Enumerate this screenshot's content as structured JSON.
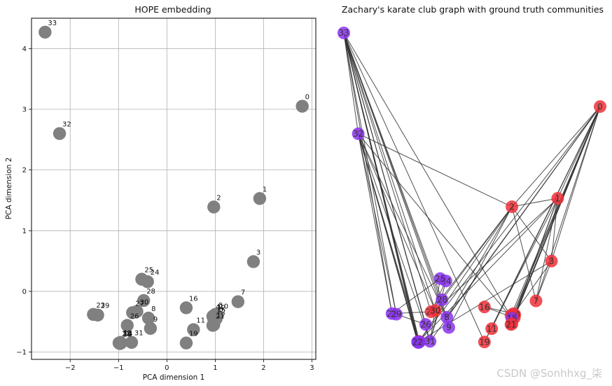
{
  "chart_data": [
    {
      "type": "scatter",
      "title": "HOPE embedding",
      "xlabel": "PCA dimension 1",
      "ylabel": "PCA dimension 2",
      "xlim": [
        -2.8,
        3.08
      ],
      "ylim": [
        -1.12,
        4.5
      ],
      "xticks": [
        -2,
        -1,
        0,
        1,
        2,
        3
      ],
      "yticks": [
        -1,
        0,
        1,
        2,
        3,
        4
      ],
      "grid": true,
      "point_color": "#808080",
      "points": [
        {
          "label": "33",
          "x": -2.52,
          "y": 4.27
        },
        {
          "label": "32",
          "x": -2.22,
          "y": 2.6
        },
        {
          "label": "0",
          "x": 2.8,
          "y": 3.05
        },
        {
          "label": "2",
          "x": 0.97,
          "y": 1.39
        },
        {
          "label": "1",
          "x": 1.92,
          "y": 1.53
        },
        {
          "label": "3",
          "x": 1.79,
          "y": 0.49
        },
        {
          "label": "7",
          "x": 1.47,
          "y": -0.17
        },
        {
          "label": "25",
          "x": -0.52,
          "y": 0.2
        },
        {
          "label": "24",
          "x": -0.4,
          "y": 0.16
        },
        {
          "label": "28",
          "x": -0.48,
          "y": -0.15
        },
        {
          "label": "23",
          "x": -1.52,
          "y": -0.38
        },
        {
          "label": "29",
          "x": -1.43,
          "y": -0.39
        },
        {
          "label": "27",
          "x": -0.71,
          "y": -0.35
        },
        {
          "label": "30",
          "x": -0.62,
          "y": -0.33
        },
        {
          "label": "8",
          "x": -0.38,
          "y": -0.44
        },
        {
          "label": "26",
          "x": -0.82,
          "y": -0.56
        },
        {
          "label": "9",
          "x": -0.34,
          "y": -0.61
        },
        {
          "label": "16",
          "x": 0.4,
          "y": -0.27
        },
        {
          "label": "6",
          "x": 1.0,
          "y": -0.38
        },
        {
          "label": "4",
          "x": 0.95,
          "y": -0.41
        },
        {
          "label": "10",
          "x": 1.03,
          "y": -0.4
        },
        {
          "label": "5",
          "x": 1.02,
          "y": -0.45
        },
        {
          "label": "15",
          "x": 0.97,
          "y": -0.46
        },
        {
          "label": "17",
          "x": 0.97,
          "y": -0.55
        },
        {
          "label": "21",
          "x": 0.95,
          "y": -0.56
        },
        {
          "label": "11",
          "x": 0.55,
          "y": -0.63
        },
        {
          "label": "19",
          "x": 0.4,
          "y": -0.85
        },
        {
          "label": "31",
          "x": -0.73,
          "y": -0.84
        },
        {
          "label": "18",
          "x": -0.98,
          "y": -0.85
        },
        {
          "label": "20",
          "x": -0.97,
          "y": -0.86
        },
        {
          "label": "13",
          "x": -0.96,
          "y": -0.84
        },
        {
          "label": "14",
          "x": -0.95,
          "y": -0.85
        },
        {
          "label": "22",
          "x": -0.99,
          "y": -0.85
        },
        {
          "label": "12",
          "x": 0.98,
          "y": -0.42
        }
      ]
    },
    {
      "type": "network",
      "title": "Zachary's karate club graph with ground truth communities",
      "community_colors": {
        "red": "#f0303a",
        "purple": "#8b32ee"
      },
      "edge_color": "#333333",
      "nodes": [
        {
          "id": "0",
          "x": 2.8,
          "y": 3.05,
          "group": "red"
        },
        {
          "id": "1",
          "x": 1.92,
          "y": 1.53,
          "group": "red"
        },
        {
          "id": "2",
          "x": 0.97,
          "y": 1.39,
          "group": "red"
        },
        {
          "id": "3",
          "x": 1.79,
          "y": 0.49,
          "group": "red"
        },
        {
          "id": "4",
          "x": 0.95,
          "y": -0.41,
          "group": "red"
        },
        {
          "id": "5",
          "x": 1.02,
          "y": -0.45,
          "group": "red"
        },
        {
          "id": "6",
          "x": 1.0,
          "y": -0.38,
          "group": "red"
        },
        {
          "id": "7",
          "x": 1.47,
          "y": -0.17,
          "group": "red"
        },
        {
          "id": "8",
          "x": -0.38,
          "y": -0.44,
          "group": "purple"
        },
        {
          "id": "9",
          "x": -0.34,
          "y": -0.61,
          "group": "purple"
        },
        {
          "id": "10",
          "x": 1.03,
          "y": -0.4,
          "group": "red"
        },
        {
          "id": "11",
          "x": 0.55,
          "y": -0.63,
          "group": "red"
        },
        {
          "id": "12",
          "x": 0.98,
          "y": -0.42,
          "group": "red"
        },
        {
          "id": "13",
          "x": -0.96,
          "y": -0.84,
          "group": "red"
        },
        {
          "id": "14",
          "x": -0.95,
          "y": -0.85,
          "group": "purple"
        },
        {
          "id": "15",
          "x": 0.97,
          "y": -0.46,
          "group": "purple"
        },
        {
          "id": "16",
          "x": 0.4,
          "y": -0.27,
          "group": "red"
        },
        {
          "id": "17",
          "x": 0.97,
          "y": -0.55,
          "group": "red"
        },
        {
          "id": "18",
          "x": -0.98,
          "y": -0.85,
          "group": "purple"
        },
        {
          "id": "19",
          "x": 0.4,
          "y": -0.85,
          "group": "red"
        },
        {
          "id": "20",
          "x": -0.97,
          "y": -0.86,
          "group": "purple"
        },
        {
          "id": "21",
          "x": 0.95,
          "y": -0.56,
          "group": "red"
        },
        {
          "id": "22",
          "x": -0.99,
          "y": -0.85,
          "group": "purple"
        },
        {
          "id": "23",
          "x": -1.52,
          "y": -0.38,
          "group": "purple"
        },
        {
          "id": "24",
          "x": -0.4,
          "y": 0.16,
          "group": "purple"
        },
        {
          "id": "25",
          "x": -0.52,
          "y": 0.2,
          "group": "purple"
        },
        {
          "id": "26",
          "x": -0.82,
          "y": -0.56,
          "group": "purple"
        },
        {
          "id": "27",
          "x": -0.71,
          "y": -0.35,
          "group": "red"
        },
        {
          "id": "28",
          "x": -0.48,
          "y": -0.15,
          "group": "purple"
        },
        {
          "id": "29",
          "x": -1.43,
          "y": -0.39,
          "group": "purple"
        },
        {
          "id": "30",
          "x": -0.62,
          "y": -0.33,
          "group": "red"
        },
        {
          "id": "31",
          "x": -0.73,
          "y": -0.84,
          "group": "purple"
        },
        {
          "id": "32",
          "x": -2.22,
          "y": 2.6,
          "group": "purple"
        },
        {
          "id": "33",
          "x": -2.52,
          "y": 4.27,
          "group": "purple"
        }
      ],
      "edges": [
        [
          0,
          1
        ],
        [
          0,
          2
        ],
        [
          0,
          3
        ],
        [
          0,
          4
        ],
        [
          0,
          5
        ],
        [
          0,
          6
        ],
        [
          0,
          7
        ],
        [
          0,
          8
        ],
        [
          0,
          10
        ],
        [
          0,
          11
        ],
        [
          0,
          12
        ],
        [
          0,
          13
        ],
        [
          0,
          17
        ],
        [
          0,
          19
        ],
        [
          0,
          21
        ],
        [
          0,
          31
        ],
        [
          1,
          2
        ],
        [
          1,
          3
        ],
        [
          1,
          7
        ],
        [
          1,
          13
        ],
        [
          1,
          17
        ],
        [
          1,
          19
        ],
        [
          1,
          21
        ],
        [
          1,
          30
        ],
        [
          2,
          3
        ],
        [
          2,
          7
        ],
        [
          2,
          8
        ],
        [
          2,
          9
        ],
        [
          2,
          13
        ],
        [
          2,
          27
        ],
        [
          2,
          28
        ],
        [
          2,
          32
        ],
        [
          3,
          7
        ],
        [
          3,
          12
        ],
        [
          3,
          13
        ],
        [
          4,
          6
        ],
        [
          4,
          10
        ],
        [
          5,
          6
        ],
        [
          5,
          10
        ],
        [
          5,
          16
        ],
        [
          6,
          16
        ],
        [
          8,
          30
        ],
        [
          8,
          32
        ],
        [
          8,
          33
        ],
        [
          9,
          33
        ],
        [
          13,
          33
        ],
        [
          14,
          32
        ],
        [
          14,
          33
        ],
        [
          15,
          32
        ],
        [
          15,
          33
        ],
        [
          18,
          32
        ],
        [
          18,
          33
        ],
        [
          19,
          33
        ],
        [
          20,
          32
        ],
        [
          20,
          33
        ],
        [
          22,
          32
        ],
        [
          22,
          33
        ],
        [
          23,
          25
        ],
        [
          23,
          27
        ],
        [
          23,
          29
        ],
        [
          23,
          32
        ],
        [
          23,
          33
        ],
        [
          24,
          25
        ],
        [
          24,
          27
        ],
        [
          24,
          31
        ],
        [
          25,
          31
        ],
        [
          26,
          29
        ],
        [
          26,
          33
        ],
        [
          27,
          33
        ],
        [
          28,
          31
        ],
        [
          28,
          33
        ],
        [
          29,
          32
        ],
        [
          29,
          33
        ],
        [
          30,
          32
        ],
        [
          30,
          33
        ],
        [
          31,
          32
        ],
        [
          31,
          33
        ],
        [
          32,
          33
        ]
      ]
    }
  ],
  "watermark": "CSDN @Sonhhxg_柒"
}
